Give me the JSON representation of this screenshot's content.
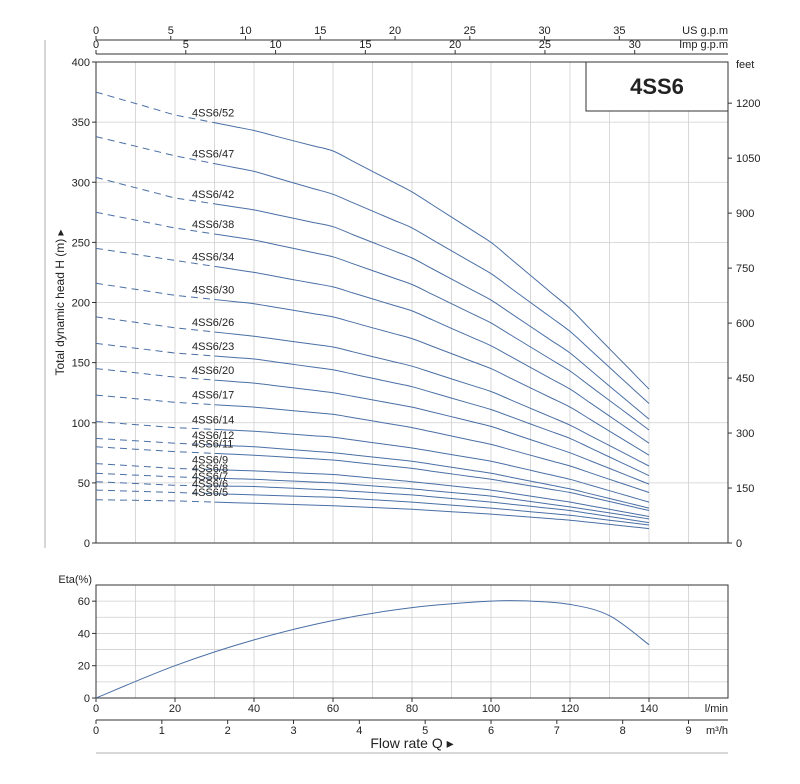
{
  "chart_data": [
    {
      "type": "line",
      "title_box": "4SS6",
      "ylabel": "Total dynamic head H (m)",
      "ylabel_arrow": "▸",
      "ylim": [
        0,
        400
      ],
      "yticks": [
        0,
        50,
        100,
        150,
        200,
        250,
        300,
        350,
        400
      ],
      "xlim_lmin": [
        0,
        140
      ],
      "right_axis": {
        "unit": "feet",
        "ticks": [
          0,
          150,
          300,
          450,
          600,
          750,
          900,
          1050,
          1200
        ]
      },
      "top_axis_us": {
        "unit": "US g.p.m",
        "ticks": [
          0,
          5,
          10,
          15,
          20,
          25,
          30,
          35
        ]
      },
      "top_axis_imp": {
        "unit": "Imp g.p.m",
        "ticks": [
          0,
          5,
          10,
          15,
          20,
          25,
          30
        ]
      },
      "dashed_range_lmin": [
        0,
        30
      ],
      "series": [
        {
          "name": "4SS6/52",
          "x": [
            0,
            20,
            40,
            60,
            80,
            100,
            120,
            140
          ],
          "values": [
            375,
            356,
            343,
            326,
            292,
            250,
            195,
            128
          ]
        },
        {
          "name": "4SS6/47",
          "x": [
            0,
            20,
            40,
            60,
            80,
            100,
            120,
            140
          ],
          "values": [
            338,
            322,
            309,
            290,
            262,
            224,
            176,
            116
          ]
        },
        {
          "name": "4SS6/42",
          "x": [
            0,
            20,
            40,
            60,
            80,
            100,
            120,
            140
          ],
          "values": [
            304,
            287,
            277,
            263,
            237,
            202,
            158,
            103
          ]
        },
        {
          "name": "4SS6/38",
          "x": [
            0,
            20,
            40,
            60,
            80,
            100,
            120,
            140
          ],
          "values": [
            275,
            262,
            252,
            238,
            215,
            183,
            143,
            94
          ]
        },
        {
          "name": "4SS6/34",
          "x": [
            0,
            20,
            40,
            60,
            80,
            100,
            120,
            140
          ],
          "values": [
            245,
            235,
            225,
            213,
            193,
            164,
            128,
            83
          ]
        },
        {
          "name": "4SS6/30",
          "x": [
            0,
            20,
            40,
            60,
            80,
            100,
            120,
            140
          ],
          "values": [
            216,
            206,
            199,
            188,
            170,
            145,
            113,
            73
          ]
        },
        {
          "name": "4SS6/26",
          "x": [
            0,
            20,
            40,
            60,
            80,
            100,
            120,
            140
          ],
          "values": [
            188,
            179,
            172,
            163,
            147,
            126,
            98,
            64
          ]
        },
        {
          "name": "4SS6/23",
          "x": [
            0,
            20,
            40,
            60,
            80,
            100,
            120,
            140
          ],
          "values": [
            166,
            158,
            153,
            144,
            130,
            111,
            87,
            56
          ]
        },
        {
          "name": "4SS6/20",
          "x": [
            0,
            20,
            40,
            60,
            80,
            100,
            120,
            140
          ],
          "values": [
            145,
            138,
            133,
            125,
            113,
            97,
            75,
            49
          ]
        },
        {
          "name": "4SS6/17",
          "x": [
            0,
            20,
            40,
            60,
            80,
            100,
            120,
            140
          ],
          "values": [
            123,
            117,
            113,
            107,
            96,
            82,
            64,
            42
          ]
        },
        {
          "name": "4SS6/14",
          "x": [
            0,
            20,
            40,
            60,
            80,
            100,
            120,
            140
          ],
          "values": [
            101,
            96,
            93,
            88,
            79,
            68,
            53,
            34
          ]
        },
        {
          "name": "4SS6/12",
          "x": [
            0,
            20,
            40,
            60,
            80,
            100,
            120,
            140
          ],
          "values": [
            87,
            83,
            80,
            75,
            68,
            58,
            45,
            29
          ]
        },
        {
          "name": "4SS6/11",
          "x": [
            0,
            20,
            40,
            60,
            80,
            100,
            120,
            140
          ],
          "values": [
            80,
            76,
            73,
            69,
            62,
            53,
            42,
            27
          ]
        },
        {
          "name": "4SS6/9",
          "x": [
            0,
            20,
            40,
            60,
            80,
            100,
            120,
            140
          ],
          "values": [
            66,
            62,
            60,
            57,
            51,
            44,
            34,
            22
          ]
        },
        {
          "name": "4SS6/8",
          "x": [
            0,
            20,
            40,
            60,
            80,
            100,
            120,
            140
          ],
          "values": [
            58,
            55,
            53,
            50,
            45,
            39,
            30,
            20
          ]
        },
        {
          "name": "4SS6/7",
          "x": [
            0,
            20,
            40,
            60,
            80,
            100,
            120,
            140
          ],
          "values": [
            51,
            48,
            47,
            44,
            40,
            34,
            27,
            17
          ]
        },
        {
          "name": "4SS6/6",
          "x": [
            0,
            20,
            40,
            60,
            80,
            100,
            120,
            140
          ],
          "values": [
            44,
            42,
            40,
            38,
            34,
            29,
            23,
            15
          ]
        },
        {
          "name": "4SS6/5",
          "x": [
            0,
            20,
            40,
            60,
            80,
            100,
            120,
            140
          ],
          "values": [
            36,
            35,
            33,
            31,
            28,
            24,
            19,
            12
          ]
        }
      ]
    },
    {
      "type": "line",
      "ylabel": "Eta(%)",
      "ylim": [
        0,
        70
      ],
      "yticks": [
        0,
        20,
        40,
        60
      ],
      "xlabel": "Flow rate Q",
      "xlabel_arrow": "▸",
      "x_axis_lmin": {
        "unit": "l/min",
        "ticks": [
          0,
          20,
          40,
          60,
          80,
          100,
          120,
          140
        ]
      },
      "x_axis_m3h": {
        "unit": "m³/h",
        "ticks": [
          0,
          1,
          2,
          3,
          4,
          5,
          6,
          7,
          8,
          9
        ]
      },
      "series": [
        {
          "name": "",
          "x": [
            0,
            20,
            40,
            60,
            80,
            100,
            110,
            120,
            130,
            140
          ],
          "values": [
            0,
            20,
            36,
            48,
            56,
            60,
            60,
            58,
            51,
            33
          ]
        }
      ]
    }
  ],
  "colors": {
    "curve": "#4a6fa5",
    "grid": "#cfcfcf",
    "axis": "#333333",
    "text": "#222222"
  }
}
